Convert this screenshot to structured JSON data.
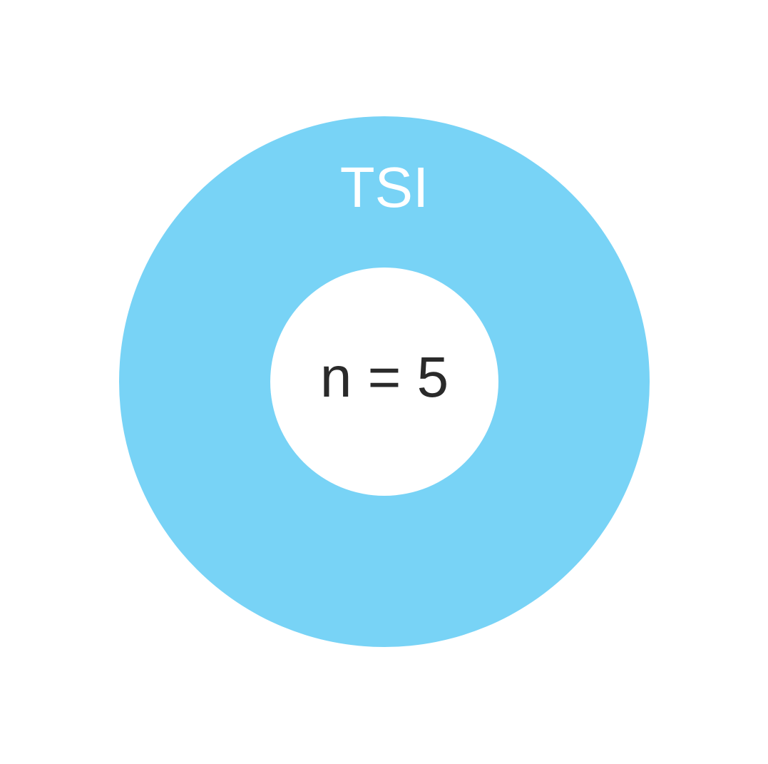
{
  "chart_data": {
    "type": "pie",
    "categories": [
      "TSI"
    ],
    "values": [
      5
    ],
    "colors": [
      "#78d3f6"
    ],
    "center_label": "n = 5",
    "legend": "none"
  }
}
